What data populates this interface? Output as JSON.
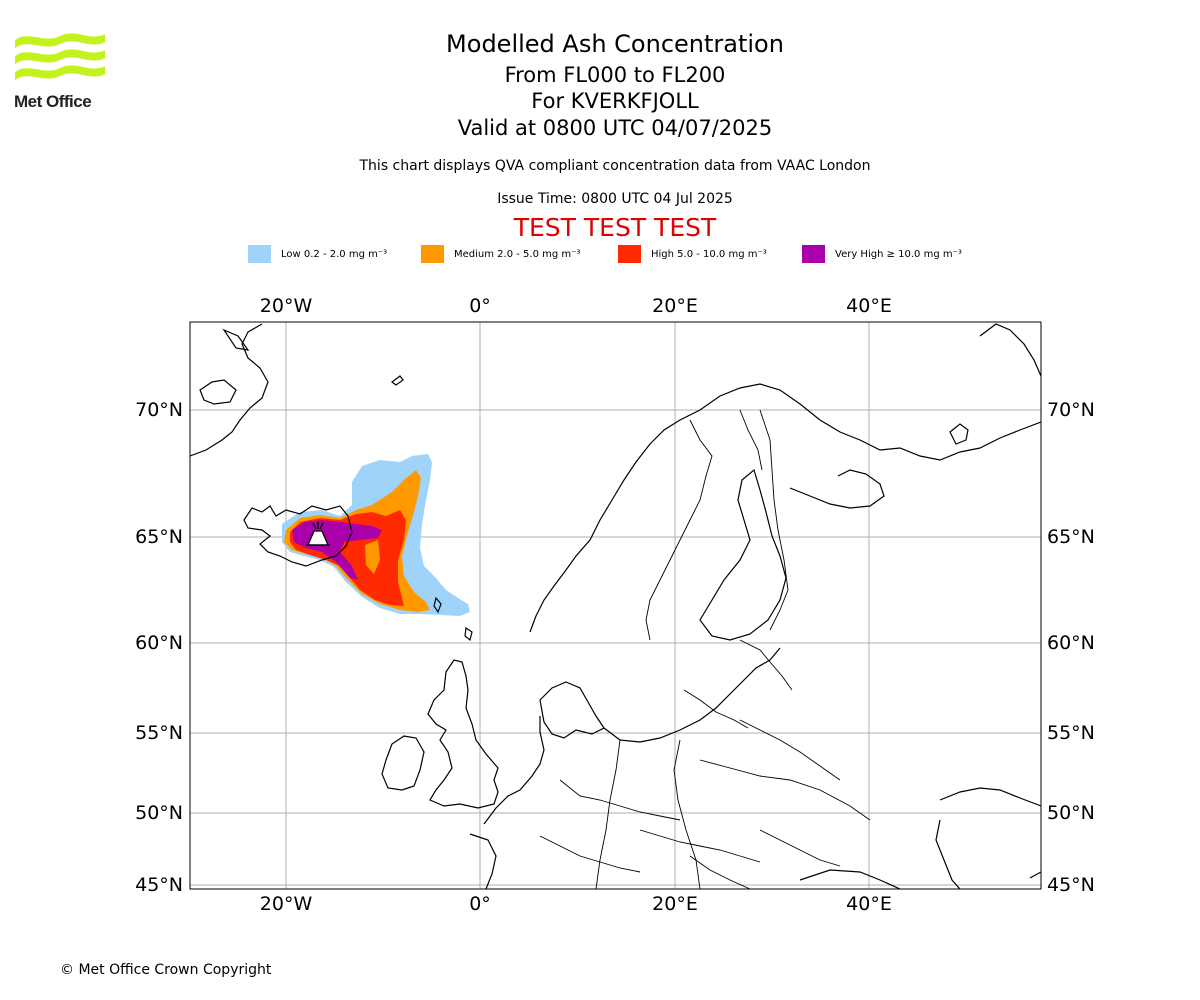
{
  "header": {
    "logo_text": "Met Office",
    "title": "Modelled Ash Concentration",
    "flight_levels": "From FL000 to FL200",
    "volcano": "For KVERKFJOLL",
    "valid_time": "Valid at 0800 UTC 04/07/2025",
    "disclaimer": "This chart displays QVA compliant concentration data from VAAC London",
    "issue_time": "Issue Time: 0800 UTC 04 Jul 2025",
    "test_banner": "TEST TEST TEST"
  },
  "legend": [
    {
      "label": "Low 0.2 - 2.0 mg m⁻³",
      "color": "#9fd3fa"
    },
    {
      "label": "Medium 2.0 - 5.0 mg m⁻³",
      "color": "#ff9900"
    },
    {
      "label": "High 5.0 - 10.0 mg m⁻³",
      "color": "#ff2a00"
    },
    {
      "label": "Very High ≥ 10.0 mg m⁻³",
      "color": "#aa00aa"
    }
  ],
  "map": {
    "lon_labels": [
      "20°W",
      "0°",
      "20°E",
      "40°E"
    ],
    "lat_labels": [
      "70°N",
      "65°N",
      "60°N",
      "55°N",
      "50°N",
      "45°N"
    ],
    "volcano_icon": "volcano-icon"
  },
  "footer": {
    "copyright": "© Met Office Crown Copyright"
  }
}
